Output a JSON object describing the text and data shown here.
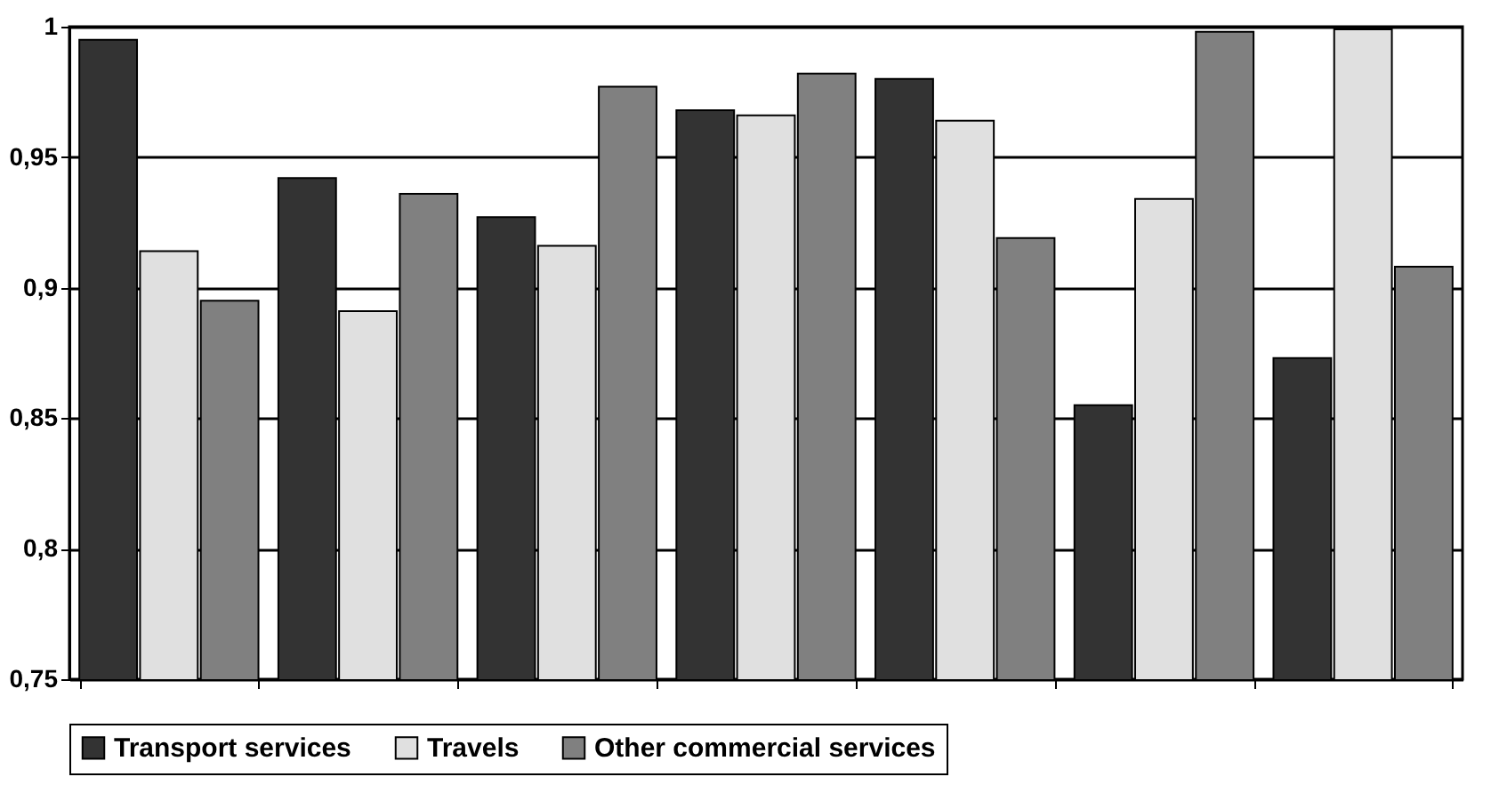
{
  "chart_data": {
    "type": "bar",
    "categories": [
      null,
      null,
      null,
      null,
      null,
      null,
      null
    ],
    "series": [
      {
        "name": "Transport services",
        "color": "#333333",
        "values": [
          0.995,
          0.942,
          0.927,
          0.968,
          0.98,
          0.855,
          0.873
        ]
      },
      {
        "name": "Travels",
        "color": "#e0e0e0",
        "values": [
          0.914,
          0.891,
          0.916,
          0.966,
          0.964,
          0.934,
          0.999
        ]
      },
      {
        "name": "Other commercial services",
        "color": "#808080",
        "values": [
          0.895,
          0.936,
          0.977,
          0.982,
          0.919,
          0.998,
          0.908
        ]
      }
    ],
    "ylim": [
      0.75,
      1
    ],
    "yticks": [
      {
        "value": 0.75,
        "label": "0,75"
      },
      {
        "value": 0.8,
        "label": "0,8"
      },
      {
        "value": 0.85,
        "label": "0,85"
      },
      {
        "value": 0.9,
        "label": "0,9"
      },
      {
        "value": 0.95,
        "label": "0,95"
      },
      1
    ],
    "grid": "y",
    "legend": "bottom"
  }
}
